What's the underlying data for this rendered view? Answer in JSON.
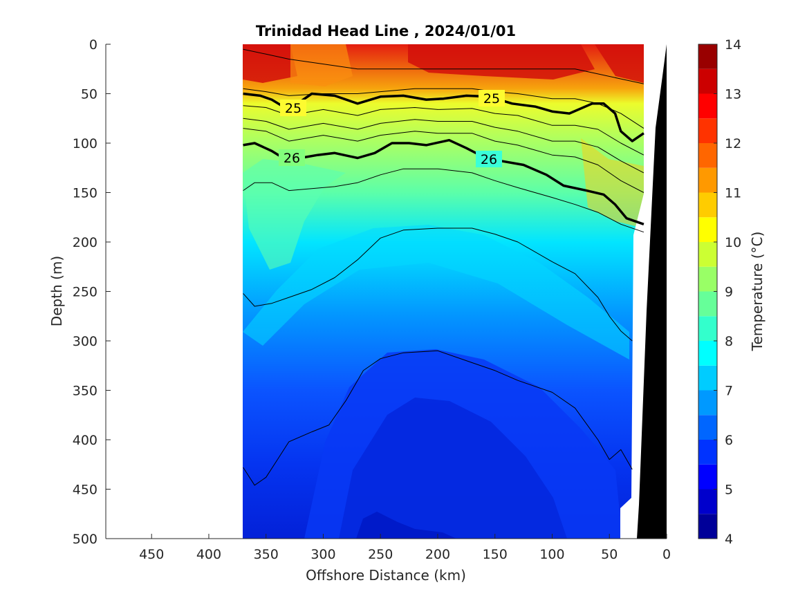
{
  "chart_data": {
    "type": "heatmap",
    "subtype": "filled-contour section",
    "title": "Trinidad Head Line , 2024/01/01",
    "xlabel": "Offshore Distance (km)",
    "ylabel": "Depth (m)",
    "xlim": [
      490,
      0
    ],
    "ylim": [
      500,
      0
    ],
    "x_reversed": true,
    "y_reversed": true,
    "xticks": [
      450,
      400,
      350,
      300,
      250,
      200,
      150,
      100,
      50,
      0
    ],
    "yticks": [
      0,
      50,
      100,
      150,
      200,
      250,
      300,
      350,
      400,
      450,
      500
    ],
    "data_extent_km": [
      370,
      20
    ],
    "colorbar": {
      "label": "Temperature (°C)",
      "ticks": [
        4,
        5,
        6,
        7,
        8,
        9,
        10,
        11,
        12,
        13,
        14
      ],
      "range": [
        4,
        14
      ],
      "levels": [
        4,
        4.5,
        5,
        5.5,
        6,
        6.5,
        7,
        7.5,
        8,
        8.5,
        9,
        9.5,
        10,
        10.5,
        11,
        11.5,
        12,
        12.5,
        13,
        13.5,
        14
      ],
      "colormap": "jet"
    },
    "density_contour_labels": [
      "25",
      "25",
      "26",
      "26"
    ],
    "isotherms": [
      {
        "name": "12.5",
        "x": [
          370,
          350,
          330,
          300,
          270,
          250,
          220,
          200,
          170,
          150,
          130,
          100,
          80,
          60,
          40,
          20
        ],
        "y": [
          5,
          10,
          15,
          20,
          25,
          25,
          25,
          25,
          25,
          25,
          25,
          25,
          25,
          30,
          35,
          40
        ]
      },
      {
        "name": "11",
        "x": [
          370,
          350,
          330,
          300,
          270,
          250,
          220,
          200,
          170,
          150,
          130,
          100,
          80,
          60,
          40,
          20
        ],
        "y": [
          45,
          48,
          52,
          50,
          50,
          48,
          45,
          45,
          45,
          48,
          50,
          55,
          55,
          60,
          70,
          85
        ]
      },
      {
        "name": "25.0 kg/m3",
        "x": [
          370,
          355,
          345,
          335,
          320,
          310,
          290,
          270,
          250,
          230,
          210,
          195,
          175,
          155,
          135,
          115,
          100,
          85,
          65,
          55,
          45,
          40,
          30,
          20
        ],
        "y": [
          50,
          52,
          56,
          63,
          58,
          50,
          52,
          60,
          53,
          52,
          56,
          55,
          52,
          53,
          60,
          63,
          68,
          70,
          60,
          60,
          70,
          88,
          98,
          90
        ]
      },
      {
        "name": "10",
        "x": [
          370,
          350,
          330,
          300,
          270,
          250,
          220,
          200,
          170,
          150,
          130,
          100,
          80,
          60,
          40,
          20
        ],
        "y": [
          62,
          64,
          72,
          66,
          72,
          66,
          64,
          66,
          65,
          70,
          72,
          82,
          82,
          86,
          100,
          112
        ]
      },
      {
        "name": "9.5",
        "x": [
          370,
          350,
          330,
          300,
          270,
          250,
          220,
          200,
          170,
          150,
          130,
          100,
          80,
          60,
          40,
          20
        ],
        "y": [
          75,
          78,
          86,
          80,
          86,
          80,
          76,
          78,
          78,
          84,
          88,
          98,
          98,
          104,
          118,
          130
        ]
      },
      {
        "name": "9",
        "x": [
          370,
          350,
          330,
          300,
          270,
          250,
          220,
          200,
          170,
          150,
          130,
          100,
          80,
          60,
          40,
          20
        ],
        "y": [
          85,
          88,
          98,
          92,
          98,
          92,
          88,
          90,
          90,
          98,
          102,
          112,
          114,
          122,
          138,
          150
        ]
      },
      {
        "name": "26.0 kg/m3",
        "x": [
          370,
          360,
          345,
          335,
          320,
          305,
          290,
          270,
          255,
          240,
          225,
          210,
          190,
          175,
          160,
          145,
          125,
          105,
          90,
          70,
          55,
          45,
          35,
          20
        ],
        "y": [
          102,
          100,
          108,
          115,
          115,
          112,
          110,
          115,
          110,
          100,
          100,
          102,
          97,
          105,
          114,
          118,
          122,
          132,
          143,
          148,
          152,
          162,
          176,
          182
        ]
      },
      {
        "name": "8.5",
        "x": [
          370,
          360,
          345,
          330,
          310,
          290,
          270,
          250,
          230,
          200,
          170,
          150,
          130,
          100,
          80,
          60,
          40,
          20
        ],
        "y": [
          148,
          140,
          140,
          148,
          146,
          144,
          140,
          132,
          126,
          126,
          130,
          138,
          145,
          155,
          162,
          170,
          182,
          190
        ]
      },
      {
        "name": "7.5",
        "x": [
          370,
          360,
          345,
          330,
          310,
          290,
          270,
          250,
          230,
          200,
          170,
          150,
          130,
          100,
          80,
          60,
          50,
          40,
          30
        ],
        "y": [
          252,
          265,
          262,
          256,
          248,
          236,
          218,
          196,
          188,
          186,
          186,
          192,
          200,
          220,
          232,
          256,
          275,
          290,
          300
        ]
      },
      {
        "name": "6.5",
        "x": [
          370,
          360,
          350,
          340,
          330,
          310,
          295,
          280,
          265,
          250,
          230,
          200,
          170,
          150,
          130,
          100,
          80,
          60,
          50,
          40,
          30
        ],
        "y": [
          428,
          446,
          438,
          420,
          402,
          392,
          385,
          360,
          330,
          318,
          312,
          310,
          322,
          330,
          340,
          352,
          368,
          400,
          420,
          410,
          430
        ]
      }
    ]
  }
}
